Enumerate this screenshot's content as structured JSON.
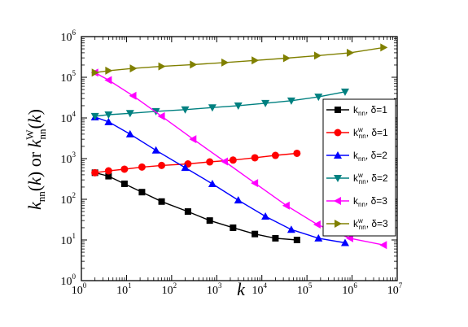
{
  "chart_data": {
    "type": "line",
    "title": "",
    "xlabel": "k",
    "ylabel": "k_nn(k) or k_nn^w(k)",
    "x_scale": "log",
    "y_scale": "log",
    "xlim": [
      1,
      10000000
    ],
    "ylim": [
      1,
      1000000
    ],
    "x_ticks": [
      1,
      10,
      100,
      1000,
      10000,
      100000,
      1000000,
      10000000
    ],
    "y_ticks": [
      1,
      10,
      100,
      1000,
      10000,
      100000,
      1000000
    ],
    "tick_base": "10",
    "x_tick_exponents": [
      "0",
      "1",
      "2",
      "3",
      "4",
      "5",
      "6",
      "7"
    ],
    "y_tick_exponents": [
      "0",
      "1",
      "2",
      "3",
      "4",
      "5",
      "6"
    ],
    "grid": false,
    "legend_position": "right",
    "series": [
      {
        "legend_main": "k",
        "legend_sub": "nn",
        "legend_sup": "",
        "legend_delta": ", δ=1",
        "color": "#000000",
        "marker": "square",
        "x": [
          2,
          4,
          9,
          22,
          60,
          230,
          700,
          2300,
          7000,
          20000,
          60000
        ],
        "y": [
          450,
          370,
          240,
          150,
          88,
          50,
          30,
          20,
          14,
          11,
          10
        ]
      },
      {
        "legend_main": "k",
        "legend_sub": "nn",
        "legend_sup": "w",
        "legend_delta": ", δ=1",
        "color": "#ff0000",
        "marker": "circle",
        "x": [
          2,
          4,
          9,
          22,
          60,
          230,
          700,
          2300,
          7000,
          20000,
          60000
        ],
        "y": [
          450,
          500,
          550,
          620,
          680,
          740,
          830,
          920,
          1050,
          1200,
          1350
        ]
      },
      {
        "legend_main": "k",
        "legend_sub": "nn",
        "legend_sup": "",
        "legend_delta": ", δ=2",
        "color": "#0000ff",
        "marker": "triangle-up",
        "x": [
          2,
          4,
          12,
          45,
          200,
          800,
          3000,
          12000,
          45000,
          180000,
          700000
        ],
        "y": [
          10500,
          8000,
          4000,
          1600,
          600,
          240,
          95,
          38,
          18,
          11,
          8.5
        ]
      },
      {
        "legend_main": "k",
        "legend_sub": "nn",
        "legend_sup": "w",
        "legend_delta": ", δ=2",
        "color": "#008080",
        "marker": "triangle-down",
        "x": [
          2,
          4,
          12,
          45,
          200,
          800,
          3000,
          12000,
          45000,
          180000,
          700000
        ],
        "y": [
          11000,
          12000,
          13000,
          14500,
          16000,
          18000,
          20000,
          23000,
          26500,
          33000,
          44000
        ]
      },
      {
        "legend_main": "k",
        "legend_sub": "nn",
        "legend_sup": "",
        "legend_delta": ", δ=3",
        "color": "#ff00ff",
        "marker": "triangle-left",
        "x": [
          2,
          4,
          14,
          60,
          300,
          1500,
          7000,
          35000,
          170000,
          900000,
          5000000
        ],
        "y": [
          130000,
          85000,
          35000,
          11000,
          3000,
          850,
          250,
          70,
          24,
          11,
          7.5
        ]
      },
      {
        "legend_main": "k",
        "legend_sub": "nn",
        "legend_sup": "w",
        "legend_delta": ", δ=3",
        "color": "#808000",
        "marker": "triangle-right",
        "x": [
          2,
          4,
          14,
          60,
          300,
          1500,
          7000,
          35000,
          170000,
          900000,
          5000000
        ],
        "y": [
          130000,
          145000,
          165000,
          185000,
          205000,
          230000,
          260000,
          295000,
          340000,
          400000,
          540000
        ]
      }
    ]
  }
}
